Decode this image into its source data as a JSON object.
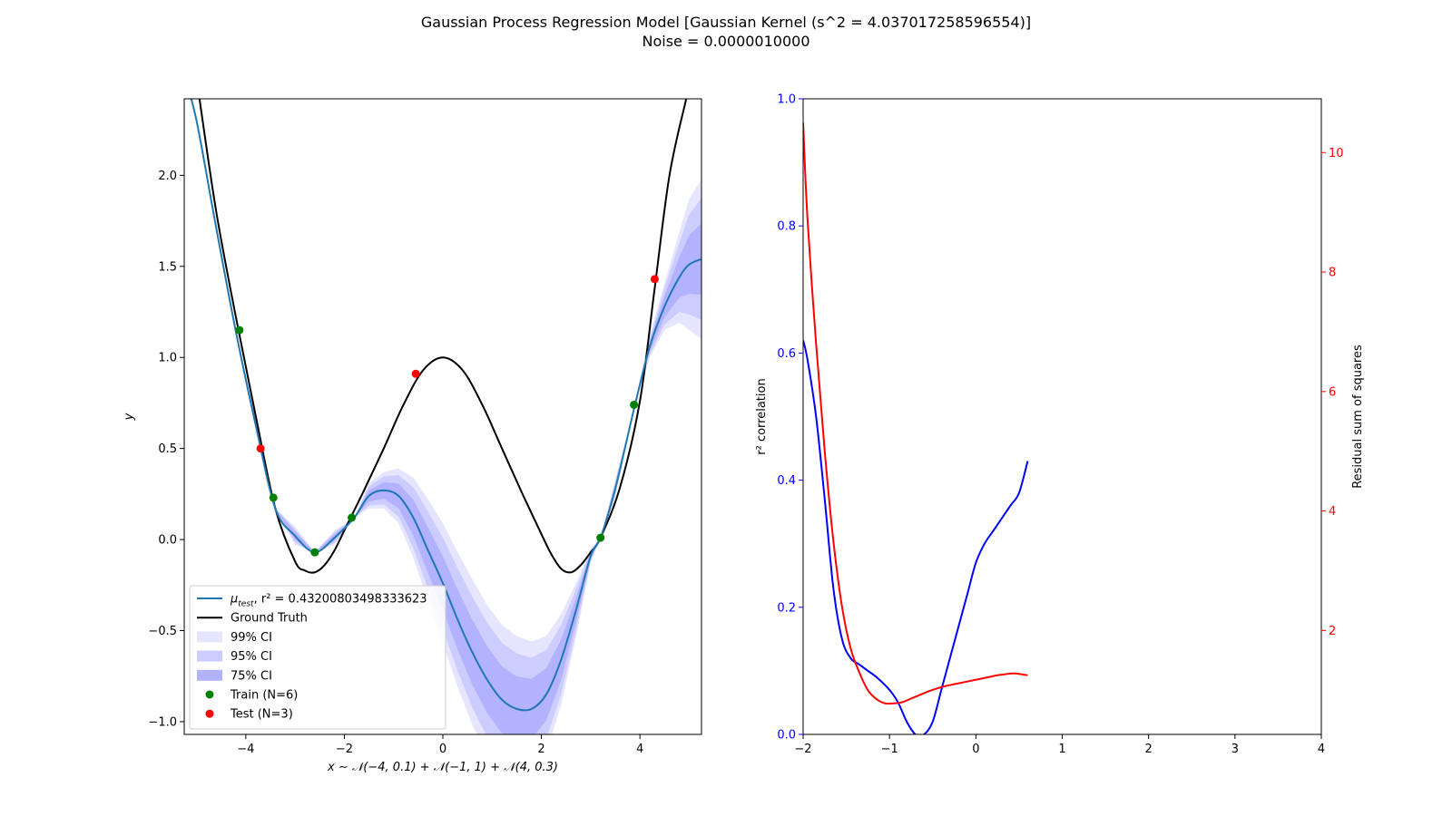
{
  "figure": {
    "title_line1": "Gaussian Process Regression Model [Gaussian Kernel (s^2 = 4.037017258596554)]",
    "title_line2": "Noise = 0.0000010000"
  },
  "chart_data": [
    {
      "type": "line",
      "panel": "left",
      "xlim": [
        -5.25,
        5.25
      ],
      "ylim": [
        -1.07,
        2.42
      ],
      "xticks": [
        -4,
        -2,
        0,
        2,
        4
      ],
      "yticks": [
        -1.0,
        -0.5,
        0.0,
        0.5,
        1.0,
        1.5,
        2.0
      ],
      "xticklabels": [
        "−4",
        "−2",
        "0",
        "2",
        "4"
      ],
      "yticklabels": [
        "−1.0",
        "−0.5",
        "0.0",
        "0.5",
        "1.0",
        "1.5",
        "2.0"
      ],
      "xlabel": "x ∼ 𝒩(−4, 0.1) + 𝒩(−1, 1) + 𝒩(4, 0.3)",
      "ylabel": "y",
      "legend_position": "lower-left",
      "ground_truth": {
        "name": "Ground Truth",
        "color": "#000000",
        "x": [
          -4.94,
          -4.6,
          -4.2,
          -3.8,
          -3.4,
          -3.0,
          -2.8,
          -2.6,
          -2.4,
          -2.2,
          -2.0,
          -1.6,
          -1.2,
          -0.8,
          -0.4,
          0.0,
          0.4,
          0.8,
          1.2,
          1.6,
          2.0,
          2.2,
          2.4,
          2.6,
          2.8,
          3.0,
          3.2,
          3.6,
          4.0,
          4.3,
          4.6,
          4.94
        ],
        "y": [
          2.42,
          1.8,
          1.22,
          0.68,
          0.17,
          -0.12,
          -0.17,
          -0.18,
          -0.14,
          -0.06,
          0.05,
          0.27,
          0.5,
          0.74,
          0.93,
          1.0,
          0.93,
          0.74,
          0.5,
          0.26,
          0.03,
          -0.08,
          -0.16,
          -0.18,
          -0.14,
          -0.07,
          0.01,
          0.29,
          0.76,
          1.38,
          2.0,
          2.42
        ]
      },
      "mean": {
        "name_prefix": "μ",
        "name_sub": "test",
        "name_suffix": ", r² = 0.43200803498333623",
        "color": "#1f77b4",
        "x": [
          -5.25,
          -5.0,
          -4.6,
          -4.2,
          -3.8,
          -3.4,
          -3.0,
          -2.6,
          -2.2,
          -1.8,
          -1.5,
          -1.2,
          -0.9,
          -0.6,
          -0.3,
          0.0,
          0.3,
          0.6,
          0.9,
          1.2,
          1.5,
          1.8,
          2.1,
          2.4,
          2.7,
          3.0,
          3.2,
          3.5,
          3.9,
          4.2,
          4.5,
          4.8,
          5.0,
          5.25
        ],
        "y": [
          2.55,
          2.3,
          1.71,
          1.14,
          0.63,
          0.17,
          0.02,
          -0.07,
          0.01,
          0.12,
          0.24,
          0.27,
          0.24,
          0.12,
          -0.06,
          -0.24,
          -0.44,
          -0.62,
          -0.77,
          -0.88,
          -0.93,
          -0.93,
          -0.85,
          -0.66,
          -0.39,
          -0.09,
          0.01,
          0.28,
          0.74,
          1.06,
          1.28,
          1.44,
          1.51,
          1.54
        ]
      },
      "ci_bands": {
        "x": [
          -4.2,
          -3.8,
          -3.4,
          -3.0,
          -2.6,
          -2.2,
          -1.8,
          -1.5,
          -1.2,
          -0.9,
          -0.6,
          -0.3,
          0.0,
          0.3,
          0.6,
          0.9,
          1.2,
          1.5,
          1.8,
          2.1,
          2.4,
          2.7,
          3.0,
          3.2,
          3.5,
          3.9,
          4.2,
          4.5,
          4.8,
          5.0,
          5.25
        ],
        "half_width_99": [
          0.0,
          0.03,
          0.0,
          0.05,
          0.0,
          0.04,
          0.0,
          0.07,
          0.1,
          0.15,
          0.22,
          0.28,
          0.33,
          0.37,
          0.4,
          0.41,
          0.41,
          0.4,
          0.37,
          0.32,
          0.25,
          0.15,
          0.04,
          0.0,
          0.05,
          0.0,
          0.06,
          0.13,
          0.25,
          0.36,
          0.44
        ],
        "series": [
          {
            "name": "99% CI",
            "z": 2.576,
            "color": "#e5e5ff"
          },
          {
            "name": "95% CI",
            "z": 1.96,
            "color": "#ccccff"
          },
          {
            "name": "75% CI",
            "z": 1.15,
            "color": "#b2b2ff"
          }
        ]
      },
      "train_points": {
        "name": "Train (N=6)",
        "color": "#008000",
        "x": [
          -4.13,
          -3.44,
          -2.6,
          -1.85,
          3.2,
          3.88
        ],
        "y": [
          1.15,
          0.23,
          -0.07,
          0.12,
          0.01,
          0.74
        ]
      },
      "test_points": {
        "name": "Test (N=3)",
        "color": "#ff0000",
        "x": [
          -3.7,
          -0.55,
          4.3
        ],
        "y": [
          0.5,
          0.91,
          1.43
        ]
      }
    },
    {
      "type": "line",
      "panel": "right",
      "xlim": [
        -2,
        4
      ],
      "ylim_left": [
        0.0,
        1.0
      ],
      "ylim_right": [
        0.26,
        10.9
      ],
      "xticks": [
        -2,
        -1,
        0,
        1,
        2,
        3,
        4
      ],
      "xticklabels": [
        "−2",
        "−1",
        "0",
        "1",
        "2",
        "3",
        "4"
      ],
      "yticks_left": [
        0.0,
        0.2,
        0.4,
        0.6,
        0.8,
        1.0
      ],
      "yticklabels_left": [
        "0.0",
        "0.2",
        "0.4",
        "0.6",
        "0.8",
        "1.0"
      ],
      "yticks_right": [
        2,
        4,
        6,
        8,
        10
      ],
      "yticklabels_right": [
        "2",
        "4",
        "6",
        "8",
        "10"
      ],
      "ylabel_left": "r² correlation",
      "ylabel_right": "Residual sum of squares",
      "left_axis_color": "#0000ff",
      "right_axis_color": "#ff0000",
      "series": [
        {
          "axis": "left",
          "color": "#0000ff",
          "x": [
            -2.0,
            -1.95,
            -1.85,
            -1.75,
            -1.65,
            -1.55,
            -1.45,
            -1.35,
            -1.25,
            -1.15,
            -1.0,
            -0.9,
            -0.8,
            -0.7,
            -0.6,
            -0.5,
            -0.4,
            -0.3,
            -0.2,
            -0.1,
            0.0,
            0.1,
            0.2,
            0.3,
            0.4,
            0.5,
            0.6
          ],
          "y": [
            0.62,
            0.59,
            0.5,
            0.37,
            0.23,
            0.15,
            0.12,
            0.11,
            0.1,
            0.09,
            0.07,
            0.05,
            0.02,
            0.0,
            0.0,
            0.02,
            0.07,
            0.12,
            0.17,
            0.22,
            0.27,
            0.3,
            0.32,
            0.34,
            0.36,
            0.38,
            0.43
          ]
        },
        {
          "axis": "right",
          "color": "#ff0000",
          "x": [
            -2.0,
            -1.95,
            -1.85,
            -1.75,
            -1.65,
            -1.55,
            -1.45,
            -1.35,
            -1.25,
            -1.15,
            -1.05,
            -0.95,
            -0.85,
            -0.75,
            -0.65,
            -0.55,
            -0.45,
            -0.35,
            -0.25,
            -0.15,
            -0.05,
            0.05,
            0.15,
            0.25,
            0.35,
            0.45,
            0.6
          ],
          "y": [
            10.5,
            8.9,
            6.8,
            5.0,
            3.5,
            2.4,
            1.7,
            1.3,
            1.0,
            0.85,
            0.78,
            0.78,
            0.8,
            0.86,
            0.92,
            0.98,
            1.03,
            1.07,
            1.1,
            1.13,
            1.16,
            1.19,
            1.22,
            1.25,
            1.27,
            1.28,
            1.25
          ]
        }
      ]
    }
  ]
}
